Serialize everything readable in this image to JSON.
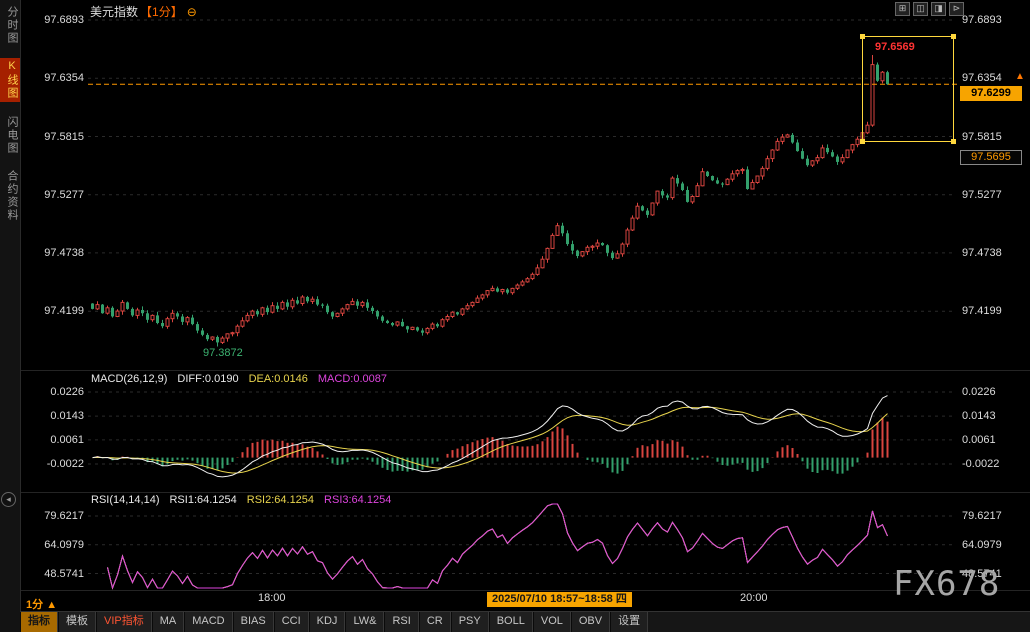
{
  "header": {
    "symbol": "美元指数",
    "period": "【1分】",
    "zoom_out_icon": "⊖"
  },
  "sidebar": {
    "items": [
      {
        "label": "分时图",
        "active": false
      },
      {
        "label": "K线图",
        "active": true
      },
      {
        "label": "闪电图",
        "active": false
      },
      {
        "label": "合约资料",
        "active": false
      }
    ]
  },
  "top_icons": [
    {
      "name": "grid-view-icon",
      "glyph": "⊞"
    },
    {
      "name": "kline-view-icon",
      "glyph": "◫"
    },
    {
      "name": "panel-view-icon",
      "glyph": "◨"
    },
    {
      "name": "next-view-icon",
      "glyph": "⊳"
    }
  ],
  "badges": {
    "current_price": "97.6299",
    "secondary_price": "97.5695"
  },
  "annotations": {
    "session_high": "97.6569",
    "session_low": "97.3872"
  },
  "icons": {
    "up_arrow": "▲",
    "collapse": "◂",
    "period_arrow": "▲"
  },
  "macd_row": {
    "title": "MACD(26,12,9)",
    "diff": "DIFF:0.0190",
    "dea": "DEA:0.0146",
    "macd": "MACD:0.0087"
  },
  "rsi_row": {
    "title": "RSI(14,14,14)",
    "rsi1": "RSI1:64.1254",
    "rsi2": "RSI2:64.1254",
    "rsi3": "RSI3:64.1254"
  },
  "time_axis": {
    "labels": [
      "18:00",
      "20:00"
    ],
    "session_info": "2025/07/10 18:57~18:58 四"
  },
  "bottom_bar": {
    "period": "1分",
    "tabs": [
      {
        "label": "指标",
        "style": "selected"
      },
      {
        "label": "模板",
        "style": "normal"
      },
      {
        "label": "VIP指标",
        "style": "vip"
      },
      {
        "label": "MA",
        "style": "normal"
      },
      {
        "label": "MACD",
        "style": "normal"
      },
      {
        "label": "BIAS",
        "style": "normal"
      },
      {
        "label": "CCI",
        "style": "normal"
      },
      {
        "label": "KDJ",
        "style": "normal"
      },
      {
        "label": "LW&",
        "style": "normal"
      },
      {
        "label": "RSI",
        "style": "normal"
      },
      {
        "label": "CR",
        "style": "normal"
      },
      {
        "label": "PSY",
        "style": "normal"
      },
      {
        "label": "BOLL",
        "style": "normal"
      },
      {
        "label": "VOL",
        "style": "normal"
      },
      {
        "label": "OBV",
        "style": "normal"
      },
      {
        "label": "设置",
        "style": "normal"
      }
    ]
  },
  "watermark": "FX678",
  "colors": {
    "up": "#d9453f",
    "down": "#33a06c",
    "accent": "#ff9900",
    "badge_bg": "#f7a400",
    "diff_line": "#f0f0f0",
    "dea_line": "#e8d44d",
    "rsi_line": "#dd44dd",
    "grid": "#2b2b2b",
    "axis_text": "#dcdcdc",
    "box": "#ffd83d"
  },
  "chart_data": {
    "type": "candlestick",
    "symbol": "美元指数",
    "interval": "1分",
    "price_axis_labels": [
      "97.6893",
      "97.6354",
      "97.5815",
      "97.5277",
      "97.4738",
      "97.4199"
    ],
    "price_top": 97.6893,
    "price_bottom": 97.4199,
    "current_price": 97.6299,
    "session_high": 97.6569,
    "session_low": 97.3872,
    "closes": [
      97.422,
      97.426,
      97.418,
      97.423,
      97.415,
      97.42,
      97.428,
      97.422,
      97.416,
      97.421,
      97.418,
      97.412,
      97.416,
      97.409,
      97.406,
      97.413,
      97.418,
      97.415,
      97.41,
      97.414,
      97.408,
      97.402,
      97.398,
      97.394,
      97.396,
      97.391,
      97.395,
      97.399,
      97.4,
      97.406,
      97.411,
      97.416,
      97.42,
      97.417,
      97.423,
      97.419,
      97.425,
      97.422,
      97.428,
      97.424,
      97.43,
      97.427,
      97.433,
      97.429,
      97.431,
      97.426,
      97.425,
      97.419,
      97.415,
      97.418,
      97.422,
      97.426,
      97.429,
      97.425,
      97.428,
      97.423,
      97.42,
      97.415,
      97.411,
      97.409,
      97.407,
      97.41,
      97.406,
      97.403,
      97.405,
      97.402,
      97.4,
      97.404,
      97.408,
      97.406,
      97.412,
      97.415,
      97.419,
      97.417,
      97.422,
      97.425,
      97.428,
      97.432,
      97.435,
      97.439,
      97.441,
      97.438,
      97.44,
      97.437,
      97.441,
      97.444,
      97.447,
      97.45,
      97.454,
      97.46,
      97.468,
      97.478,
      97.49,
      97.499,
      97.492,
      97.482,
      97.476,
      97.471,
      97.475,
      97.479,
      97.48,
      97.483,
      97.481,
      97.474,
      97.469,
      97.473,
      97.482,
      97.495,
      97.506,
      97.517,
      97.513,
      97.509,
      97.52,
      97.531,
      97.527,
      97.525,
      97.543,
      97.538,
      97.532,
      97.521,
      97.526,
      97.536,
      97.549,
      97.545,
      97.541,
      97.538,
      97.537,
      97.542,
      97.547,
      97.55,
      97.551,
      97.533,
      97.539,
      97.545,
      97.552,
      97.561,
      97.569,
      97.577,
      97.581,
      97.583,
      97.576,
      97.568,
      97.561,
      97.555,
      97.559,
      97.562,
      97.571,
      97.567,
      97.563,
      97.558,
      97.562,
      97.569,
      97.574,
      97.579,
      97.585,
      97.592,
      97.648,
      97.633,
      97.641,
      97.6299
    ],
    "macd": {
      "params": "26,12,9",
      "axis_labels": [
        "0.0226",
        "0.0143",
        "0.0061",
        "-0.0022"
      ],
      "diff": 0.019,
      "dea": 0.0146,
      "hist": 0.0087
    },
    "rsi": {
      "params": "14,14,14",
      "axis_labels": [
        "79.6217",
        "64.0979",
        "48.5741"
      ],
      "values": [
        64.1254,
        64.1254,
        64.1254
      ]
    }
  }
}
